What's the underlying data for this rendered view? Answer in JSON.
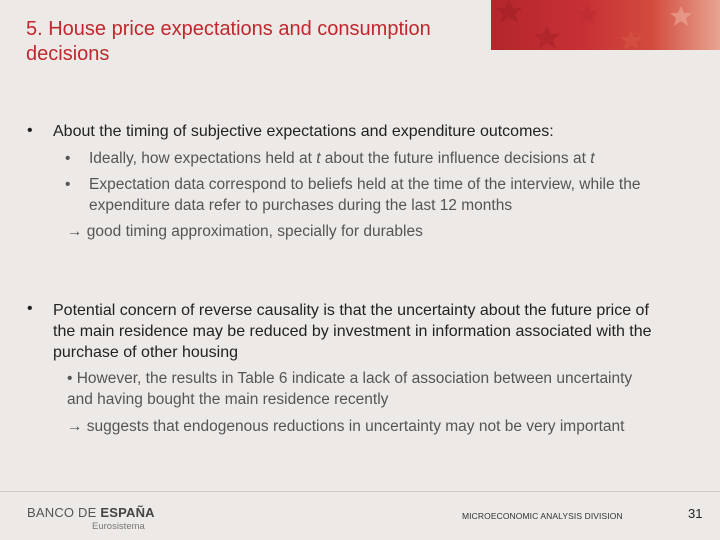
{
  "slide": {
    "title": "5. House price expectations and consumption decisions",
    "bullets": [
      {
        "text": "About the timing of subjective expectations and expenditure outcomes:",
        "subitems": [
          {
            "before": "Ideally, how expectations held at ",
            "italic": "t",
            "middle": " about the future influence decisions at ",
            "italic2": "t"
          },
          {
            "text": "Expectation data correspond to beliefs held at the time of the interview, while the expenditure data refer to purchases during the last 12 months"
          }
        ],
        "conclusion": "→ good timing approximation, specially for durables"
      },
      {
        "text": "Potential concern of reverse causality is that the uncertainty about the future price of the main residence may be reduced by investment in information associated with the purchase of other housing",
        "note_1": "• However, the results in Table 6 indicate a lack of association between uncertainty and having bought the main residence recently",
        "note_2": "→ suggests that endogenous reductions in uncertainty may not be very important"
      }
    ]
  },
  "footer": {
    "logo_light": "BANCO DE ",
    "logo_bold": "ESPAÑA",
    "logo_sub": "Eurosistema",
    "division": "MICROECONOMIC ANALYSIS DIVISION",
    "page_number": "31"
  },
  "colors": {
    "title": "#c1272d",
    "banner": "#c73035",
    "background": "#ece9e7"
  }
}
